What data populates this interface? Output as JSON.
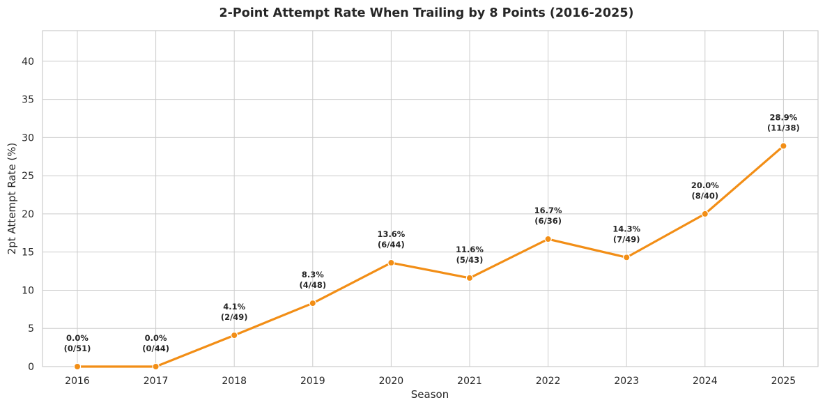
{
  "chart_data": {
    "type": "line",
    "title": "2-Point Attempt Rate When Trailing by 8 Points (2016-2025)",
    "xlabel": "Season",
    "ylabel": "2pt Attempt Rate (%)",
    "categories": [
      "2016",
      "2017",
      "2018",
      "2019",
      "2020",
      "2021",
      "2022",
      "2023",
      "2024",
      "2025"
    ],
    "values": [
      0.0,
      0.0,
      4.1,
      8.3,
      13.6,
      11.6,
      16.7,
      14.3,
      20.0,
      28.9
    ],
    "annotations": [
      {
        "rate": "0.0%",
        "count": "(0/51)"
      },
      {
        "rate": "0.0%",
        "count": "(0/44)"
      },
      {
        "rate": "4.1%",
        "count": "(2/49)"
      },
      {
        "rate": "8.3%",
        "count": "(4/48)"
      },
      {
        "rate": "13.6%",
        "count": "(6/44)"
      },
      {
        "rate": "11.6%",
        "count": "(5/43)"
      },
      {
        "rate": "16.7%",
        "count": "(6/36)"
      },
      {
        "rate": "14.3%",
        "count": "(7/49)"
      },
      {
        "rate": "20.0%",
        "count": "(8/40)"
      },
      {
        "rate": "28.9%",
        "count": "(11/38)"
      }
    ],
    "ylim": [
      0,
      44
    ],
    "yticks": [
      0,
      5,
      10,
      15,
      20,
      25,
      30,
      35,
      40
    ],
    "grid": true,
    "colors": {
      "line": "#f28e16",
      "grid": "#cccccc",
      "frame": "#cccccc",
      "text": "#262626"
    }
  }
}
